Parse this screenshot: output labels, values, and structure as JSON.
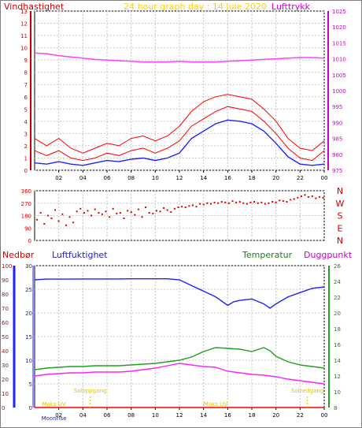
{
  "header": {
    "title": "24 hour graph day : 14 Juie 2020",
    "left_label": "Vindhastighet",
    "right_label": "Lufttrykk"
  },
  "colors": {
    "wind": "#ff0000",
    "gust": "#ff0000",
    "wind_avg": "#2020ff",
    "pressure": "#ff40ff",
    "direction": "#e00000",
    "humidity": "#2020ff",
    "temperature": "#20a020",
    "dewpoint": "#ff20ff",
    "rain": "#ff0000",
    "title": "#ffd000"
  },
  "chart_data": [
    {
      "type": "line",
      "name": "wind-pressure",
      "x_ticks": [
        "02",
        "04",
        "06",
        "08",
        "10",
        "12",
        "14",
        "16",
        "18",
        "20",
        "22",
        "00"
      ],
      "y_left_ticks": [
        "0",
        "1",
        "2",
        "3",
        "4",
        "5",
        "6",
        "7",
        "8",
        "9",
        "10",
        "11",
        "12",
        "13"
      ],
      "y_right_ticks": [
        "975",
        "980",
        "985",
        "990",
        "995",
        "1000",
        "1005",
        "1010",
        "1015",
        "1020",
        "1025"
      ],
      "ylim_left": [
        0,
        13
      ],
      "ylim_right": [
        975,
        1025
      ],
      "xlim": [
        0,
        24
      ],
      "grid": true,
      "series": [
        {
          "role": "pressure",
          "axis": "right",
          "x": [
            0,
            1,
            2,
            3,
            4,
            5,
            6,
            7,
            8,
            9,
            10,
            11,
            12,
            13,
            14,
            15,
            16,
            17,
            18,
            19,
            20,
            21,
            22,
            23,
            24
          ],
          "values": [
            1011.8,
            1011.6,
            1011.0,
            1010.6,
            1010.2,
            1009.8,
            1009.6,
            1009.4,
            1009.2,
            1009.0,
            1009.0,
            1009.0,
            1009.2,
            1009.0,
            1009.0,
            1009.0,
            1009.2,
            1009.4,
            1009.6,
            1009.8,
            1010.0,
            1010.2,
            1010.4,
            1010.4,
            1010.2
          ]
        },
        {
          "role": "wind_avg",
          "axis": "left",
          "x": [
            0,
            1,
            2,
            3,
            4,
            5,
            6,
            7,
            8,
            9,
            10,
            11,
            12,
            13,
            14,
            15,
            16,
            17,
            18,
            19,
            20,
            21,
            22,
            23,
            24
          ],
          "values": [
            0.6,
            0.5,
            0.7,
            0.5,
            0.4,
            0.6,
            0.8,
            0.7,
            0.9,
            1.0,
            0.8,
            1.0,
            1.4,
            2.6,
            3.2,
            3.8,
            4.1,
            4.0,
            3.8,
            3.2,
            2.2,
            1.1,
            0.5,
            0.4,
            0.5
          ]
        },
        {
          "role": "wind",
          "axis": "left",
          "x": [
            0,
            1,
            2,
            3,
            4,
            5,
            6,
            7,
            8,
            9,
            10,
            11,
            12,
            13,
            14,
            15,
            16,
            17,
            18,
            19,
            20,
            21,
            22,
            23,
            24
          ],
          "values": [
            1.6,
            1.2,
            1.6,
            1.0,
            0.8,
            1.0,
            1.4,
            1.2,
            1.6,
            1.8,
            1.4,
            1.8,
            2.4,
            3.6,
            4.2,
            4.8,
            5.2,
            5.0,
            4.8,
            4.0,
            3.0,
            1.8,
            1.0,
            0.8,
            1.6
          ]
        },
        {
          "role": "gust",
          "axis": "left",
          "x": [
            0,
            1,
            2,
            3,
            4,
            5,
            6,
            7,
            8,
            9,
            10,
            11,
            12,
            13,
            14,
            15,
            16,
            17,
            18,
            19,
            20,
            21,
            22,
            23,
            24
          ],
          "values": [
            2.6,
            2.0,
            2.6,
            1.8,
            1.4,
            1.8,
            2.2,
            2.0,
            2.6,
            2.8,
            2.4,
            2.8,
            3.6,
            4.8,
            5.6,
            6.0,
            6.2,
            6.0,
            5.8,
            5.0,
            4.0,
            2.6,
            1.8,
            1.6,
            2.4
          ]
        }
      ]
    },
    {
      "type": "scatter",
      "name": "wind-direction",
      "y_left_ticks": [
        "0",
        "90",
        "180",
        "270",
        "360"
      ],
      "y_right_ticks": [
        "N",
        "E",
        "S",
        "W",
        "N"
      ],
      "ylim": [
        0,
        360
      ],
      "xlim": [
        0,
        24
      ],
      "grid": true,
      "series": [
        {
          "role": "direction",
          "x": [
            0.2,
            0.5,
            0.8,
            1.1,
            1.4,
            1.7,
            2.0,
            2.3,
            2.6,
            2.9,
            3.2,
            3.5,
            3.8,
            4.1,
            4.4,
            4.7,
            5.0,
            5.3,
            5.6,
            5.9,
            6.2,
            6.5,
            6.8,
            7.1,
            7.4,
            7.7,
            8.0,
            8.3,
            8.6,
            8.9,
            9.2,
            9.5,
            9.8,
            10.1,
            10.4,
            10.7,
            11.0,
            11.3,
            11.6,
            11.9,
            12.2,
            12.5,
            12.8,
            13.1,
            13.4,
            13.7,
            14.0,
            14.3,
            14.6,
            14.9,
            15.2,
            15.5,
            15.8,
            16.1,
            16.4,
            16.7,
            17.0,
            17.3,
            17.6,
            17.9,
            18.2,
            18.5,
            18.8,
            19.1,
            19.4,
            19.7,
            20.0,
            20.3,
            20.6,
            20.9,
            21.2,
            21.5,
            21.8,
            22.1,
            22.4,
            22.7,
            23.0,
            23.3,
            23.6,
            23.9
          ],
          "values": [
            150,
            200,
            120,
            180,
            160,
            220,
            140,
            190,
            110,
            170,
            130,
            210,
            230,
            200,
            215,
            180,
            225,
            200,
            190,
            210,
            170,
            230,
            195,
            200,
            160,
            215,
            205,
            185,
            225,
            170,
            240,
            200,
            195,
            215,
            210,
            235,
            220,
            205,
            230,
            240,
            245,
            240,
            250,
            255,
            245,
            265,
            260,
            270,
            265,
            275,
            270,
            280,
            275,
            270,
            285,
            275,
            280,
            270,
            265,
            275,
            280,
            270,
            275,
            265,
            270,
            280,
            275,
            290,
            285,
            280,
            295,
            300,
            310,
            320,
            330,
            315,
            320,
            305,
            315,
            310
          ]
        }
      ]
    },
    {
      "type": "line",
      "name": "rain-humidity-temperature",
      "labels": {
        "rain": "Nedbør",
        "humidity": "Luftfuktighet",
        "temperature": "Temperatur",
        "dewpoint": "Duggpunkt"
      },
      "x_ticks": [
        "02",
        "04",
        "06",
        "08",
        "10",
        "12",
        "14",
        "16",
        "18",
        "20",
        "22",
        "00"
      ],
      "rain_ticks": [
        "0",
        "10",
        "20",
        "30",
        "40",
        "50",
        "60",
        "70",
        "80",
        "90",
        "100"
      ],
      "humidity_ticks": [
        "0",
        "5",
        "10",
        "15",
        "20",
        "25",
        "30"
      ],
      "temp_ticks": [
        "8",
        "10",
        "12",
        "14",
        "16",
        "18",
        "20",
        "22",
        "24",
        "26"
      ],
      "ylim_rain": [
        0,
        100
      ],
      "ylim_humidity": [
        0,
        30
      ],
      "ylim_temp": [
        8,
        26
      ],
      "xlim": [
        0,
        24
      ],
      "grid": true,
      "annotations": {
        "moon_label": "Moonrise",
        "sunrise_label": "Soloppgang",
        "sunset_label": "Solnedgang",
        "mid_label": "Maks UV"
      },
      "series": [
        {
          "role": "humidity",
          "axis": "humidity",
          "x": [
            0,
            1,
            2,
            3,
            4,
            5,
            6,
            7,
            8,
            9,
            10,
            11,
            12,
            13,
            14,
            15,
            15.5,
            16,
            16.5,
            17,
            18,
            19,
            19.5,
            20,
            21,
            22,
            23,
            24
          ],
          "values": [
            90,
            90.5,
            90.5,
            90.5,
            90.6,
            90.6,
            90.6,
            90.6,
            90.7,
            90.7,
            90.7,
            90.7,
            90.0,
            86.0,
            82.0,
            78.0,
            75.0,
            72.0,
            74.5,
            75.5,
            76.5,
            73.0,
            70.0,
            73.0,
            78.0,
            81.0,
            84.0,
            85.0
          ]
        },
        {
          "role": "temperature",
          "axis": "temp",
          "x": [
            0,
            1,
            2,
            3,
            4,
            5,
            6,
            7,
            8,
            9,
            10,
            11,
            12,
            13,
            14,
            15,
            16,
            17,
            18,
            19,
            19.5,
            20,
            21,
            22,
            23,
            24
          ],
          "values": [
            12.8,
            13.0,
            13.1,
            13.2,
            13.2,
            13.3,
            13.3,
            13.3,
            13.4,
            13.5,
            13.6,
            13.8,
            14.0,
            14.4,
            15.1,
            15.6,
            15.5,
            15.4,
            15.1,
            15.6,
            15.2,
            14.5,
            13.8,
            13.4,
            13.2,
            13.0
          ]
        },
        {
          "role": "dewpoint",
          "axis": "temp",
          "x": [
            0,
            1,
            2,
            3,
            4,
            5,
            6,
            7,
            8,
            9,
            10,
            11,
            12,
            13,
            14,
            15,
            16,
            17,
            18,
            19,
            20,
            21,
            22,
            23,
            24
          ],
          "values": [
            12.0,
            12.2,
            12.3,
            12.4,
            12.4,
            12.5,
            12.5,
            12.5,
            12.6,
            12.8,
            13.0,
            13.3,
            13.6,
            13.4,
            13.2,
            13.1,
            12.6,
            12.4,
            12.2,
            12.1,
            11.9,
            11.6,
            11.4,
            11.2,
            11.0
          ]
        },
        {
          "role": "rain",
          "axis": "rain",
          "x": [
            0,
            24
          ],
          "values": [
            0,
            0
          ]
        }
      ]
    }
  ]
}
